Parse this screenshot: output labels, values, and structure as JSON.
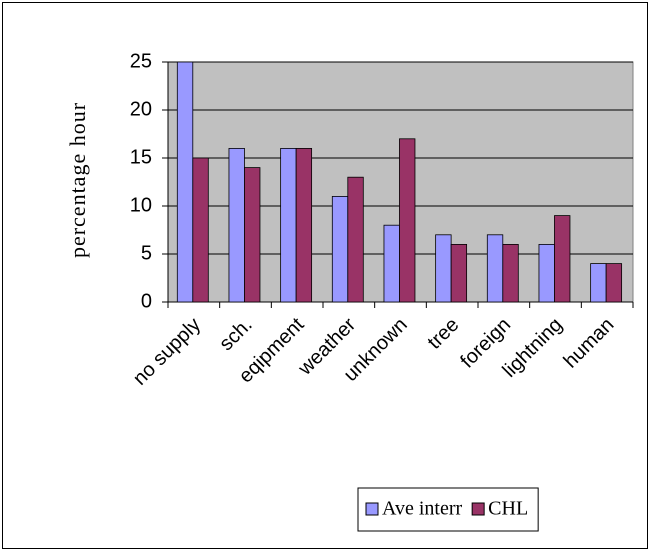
{
  "chart_data": {
    "type": "bar",
    "y_label": "percentage hour",
    "categories": [
      "no supply",
      "sch.",
      "eqipment",
      "weather",
      "unknown",
      "tree",
      "foreign",
      "lightning",
      "human"
    ],
    "series": [
      {
        "name": "Ave interr",
        "color": "#9999ff",
        "values": [
          25,
          16,
          16,
          11,
          8,
          7,
          7,
          6,
          4
        ]
      },
      {
        "name": "CHL",
        "color": "#993366",
        "values": [
          15,
          14,
          16,
          13,
          17,
          6,
          6,
          9,
          4
        ]
      }
    ],
    "ylim": [
      0,
      25
    ],
    "yticks": [
      0,
      5,
      10,
      15,
      20,
      25
    ],
    "grid": true,
    "plot_background": "#c0c0c0",
    "legend": "bottom"
  }
}
